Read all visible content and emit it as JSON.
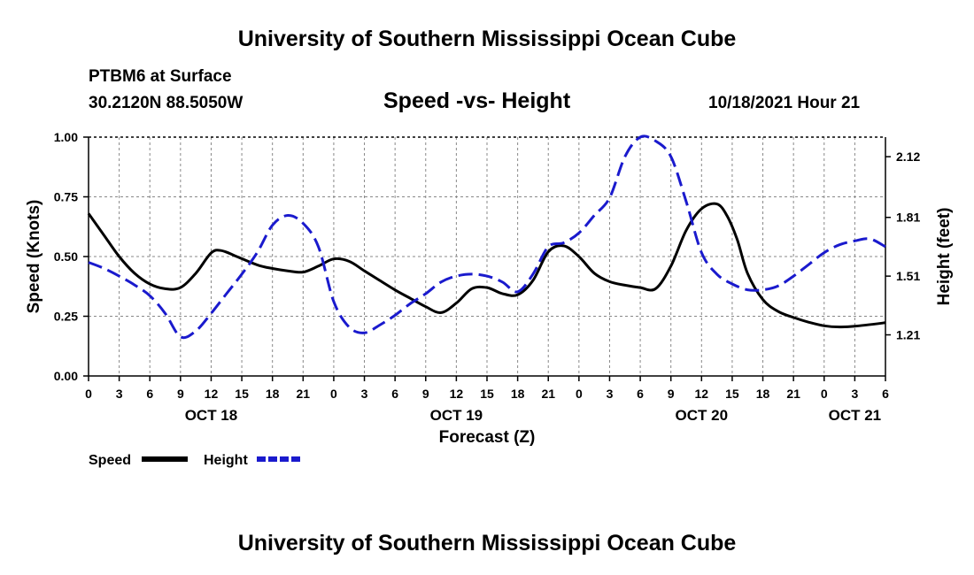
{
  "header": {
    "title": "University of Southern Mississippi Ocean Cube",
    "station": "PTBM6 at Surface",
    "coords": "30.2120N  88.5050W",
    "datetime": "10/18/2021 Hour 21"
  },
  "footer": {
    "title": "University of Southern Mississippi Ocean Cube"
  },
  "chart_data": {
    "type": "line",
    "title": "Speed -vs- Height",
    "xlabel": "Forecast (Z)",
    "ylabel_left": "Speed (Knots)",
    "ylabel_right": "Height (feet)",
    "x_unit": "hours from 2021-10-18 00Z",
    "xlim": [
      0,
      78
    ],
    "ylim_left": [
      0,
      1.0
    ],
    "ylim_right": [
      1.0,
      2.22
    ],
    "yticks_left": [
      "0.00",
      "0.25",
      "0.50",
      "0.75",
      "1.00"
    ],
    "yticks_right": [
      "1.21",
      "1.51",
      "1.81",
      "2.12"
    ],
    "x_tick_step": 3,
    "x_tick_labels": [
      "0",
      "3",
      "6",
      "9",
      "12",
      "15",
      "18",
      "21",
      "0",
      "3",
      "6",
      "9",
      "12",
      "15",
      "18",
      "21",
      "0",
      "3",
      "6",
      "9",
      "12",
      "15",
      "18",
      "21",
      "0",
      "3",
      "6"
    ],
    "day_labels": [
      {
        "label": "OCT 18",
        "hour": 12
      },
      {
        "label": "OCT 19",
        "hour": 36
      },
      {
        "label": "OCT 20",
        "hour": 60
      },
      {
        "label": "OCT 21",
        "hour": 75
      }
    ],
    "grid": true,
    "legend_position": "bottom-left",
    "series": [
      {
        "name": "Speed",
        "axis": "left",
        "color": "#000000",
        "style": "solid",
        "x": [
          0,
          1.5,
          3,
          4.5,
          6,
          7.5,
          9,
          10.5,
          12,
          13,
          14.5,
          16.5,
          18,
          19.5,
          21,
          22.5,
          24,
          25.5,
          27,
          28.5,
          30,
          31.5,
          33,
          34.5,
          36,
          37.5,
          39,
          40.5,
          42,
          43.5,
          45,
          46.5,
          48,
          49.5,
          51,
          52.5,
          54,
          55.5,
          57,
          58.5,
          60,
          61.5,
          62.5,
          63.5,
          64.5,
          66,
          67.5,
          69,
          70.5,
          72,
          73.5,
          75,
          78
        ],
        "values": [
          0.68,
          0.59,
          0.5,
          0.43,
          0.385,
          0.365,
          0.37,
          0.43,
          0.515,
          0.525,
          0.5,
          0.465,
          0.45,
          0.44,
          0.435,
          0.46,
          0.49,
          0.48,
          0.44,
          0.4,
          0.36,
          0.325,
          0.29,
          0.265,
          0.305,
          0.365,
          0.37,
          0.345,
          0.34,
          0.4,
          0.52,
          0.545,
          0.5,
          0.43,
          0.395,
          0.38,
          0.37,
          0.365,
          0.46,
          0.61,
          0.7,
          0.72,
          0.67,
          0.57,
          0.43,
          0.32,
          0.27,
          0.245,
          0.225,
          0.21,
          0.205,
          0.208,
          0.223
        ]
      },
      {
        "name": "Height",
        "axis": "right",
        "color": "#1a1acd",
        "style": "dashed",
        "x": [
          0,
          1.5,
          3,
          4.5,
          6,
          7.5,
          9,
          10.5,
          12,
          13.5,
          15,
          16.5,
          18,
          19.5,
          21,
          22.5,
          24,
          25.5,
          27,
          28.5,
          30,
          31.5,
          33,
          34.5,
          36,
          37.5,
          39,
          40.5,
          42,
          43.5,
          45,
          46.5,
          48,
          49.5,
          51,
          52.5,
          54,
          55.5,
          57,
          58.5,
          60,
          61.5,
          63,
          64.5,
          66,
          67.5,
          69,
          70.5,
          72,
          73.5,
          75,
          76.5,
          78
        ],
        "values": [
          1.58,
          1.55,
          1.51,
          1.465,
          1.41,
          1.32,
          1.2,
          1.23,
          1.32,
          1.42,
          1.52,
          1.63,
          1.77,
          1.82,
          1.78,
          1.66,
          1.38,
          1.25,
          1.22,
          1.26,
          1.31,
          1.37,
          1.42,
          1.48,
          1.51,
          1.52,
          1.51,
          1.48,
          1.43,
          1.52,
          1.66,
          1.68,
          1.73,
          1.82,
          1.91,
          2.12,
          2.22,
          2.2,
          2.12,
          1.89,
          1.63,
          1.52,
          1.47,
          1.44,
          1.44,
          1.46,
          1.51,
          1.57,
          1.63,
          1.67,
          1.69,
          1.7,
          1.66
        ]
      }
    ]
  }
}
